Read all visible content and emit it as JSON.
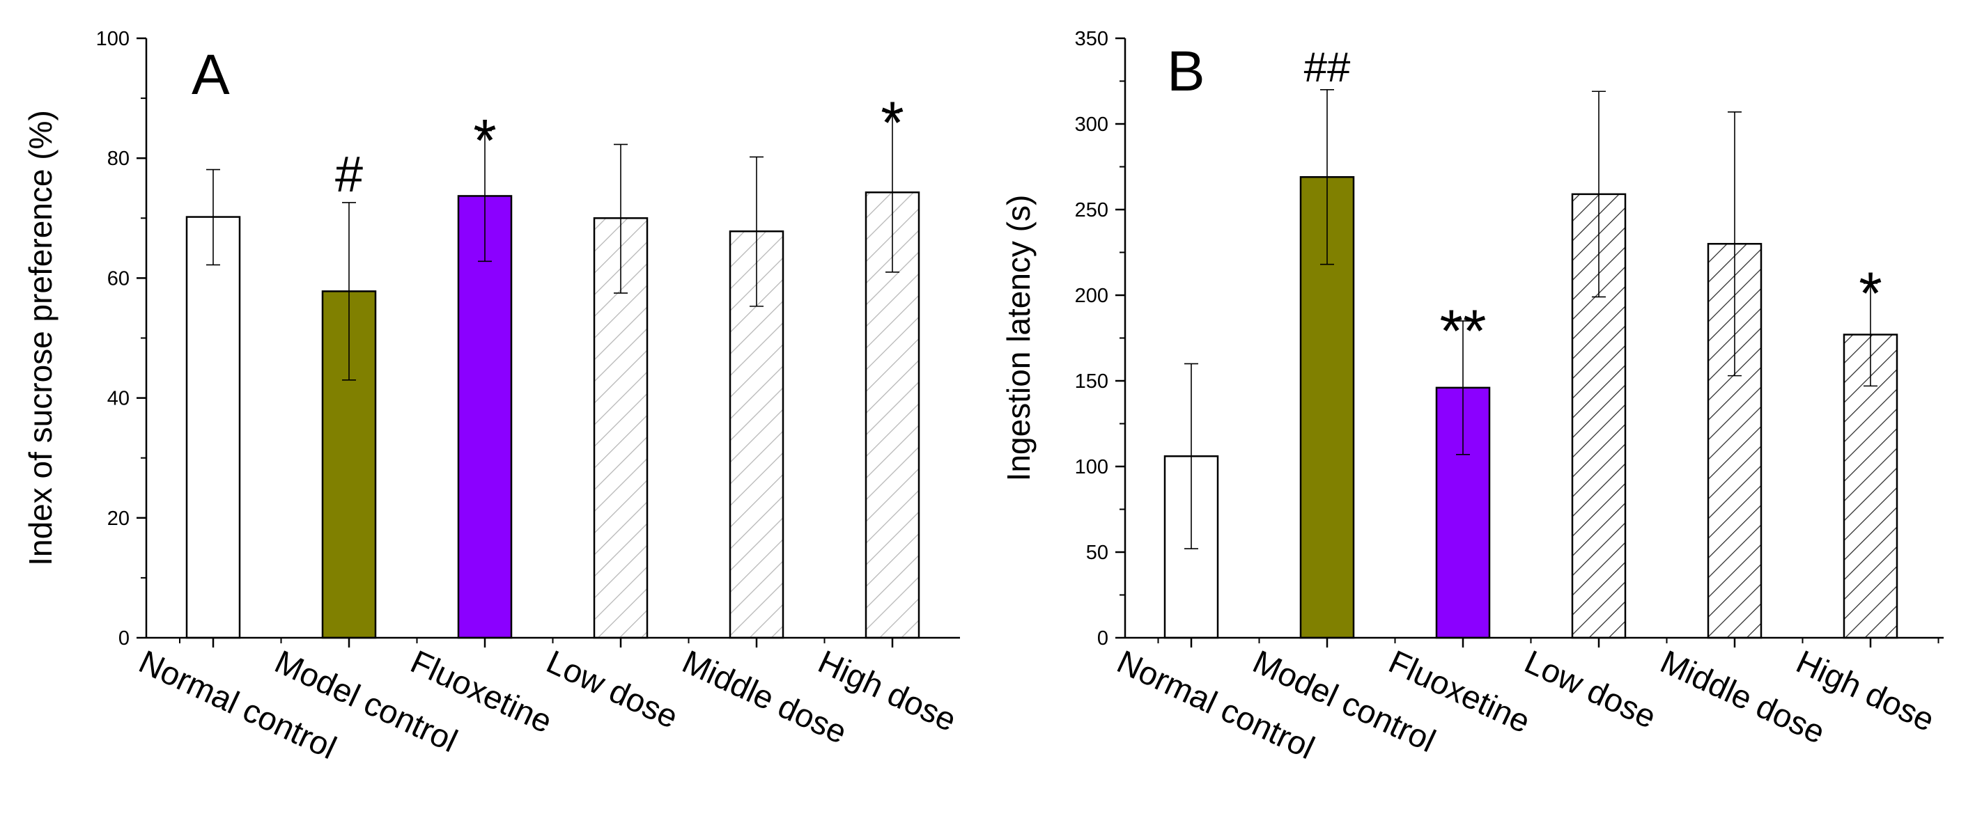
{
  "chart_data": [
    {
      "type": "bar",
      "panel_label": "A",
      "title": "",
      "xlabel": "",
      "ylabel": "Index of sucrose preference (%)",
      "ylim": [
        0,
        100
      ],
      "yticks": [
        0,
        20,
        40,
        60,
        80,
        100
      ],
      "categories": [
        "Normal control",
        "Model control",
        "Fluoxetine",
        "Low dose",
        "Middle dose",
        "High dose"
      ],
      "values": [
        70.2,
        57.8,
        73.7,
        70.0,
        67.8,
        74.3
      ],
      "error_upper": [
        78.1,
        72.6,
        84.6,
        82.3,
        80.2,
        87.6
      ],
      "error_lower": [
        62.2,
        43.0,
        62.8,
        57.5,
        55.3,
        61.0
      ],
      "fills": [
        "white",
        "#808000",
        "#8b00ff",
        "hatch-light",
        "hatch-light",
        "hatch-light"
      ],
      "annotations": [
        "",
        "#",
        "*",
        "",
        "",
        "*"
      ],
      "grid": false,
      "legend": "none"
    },
    {
      "type": "bar",
      "panel_label": "B",
      "title": "",
      "xlabel": "",
      "ylabel": "Ingestion latency (s)",
      "ylim": [
        0,
        350
      ],
      "yticks": [
        0,
        50,
        100,
        150,
        200,
        250,
        300,
        350
      ],
      "categories": [
        "Normal control",
        "Model control",
        "Fluoxetine",
        "Low dose",
        "Middle dose",
        "High dose"
      ],
      "values": [
        106,
        269,
        146,
        259,
        230,
        177
      ],
      "error_upper": [
        160,
        320,
        185,
        319,
        307,
        207
      ],
      "error_lower": [
        52,
        218,
        107,
        199,
        153,
        147
      ],
      "fills": [
        "white",
        "#808000",
        "#8b00ff",
        "hatch-dark",
        "hatch-dark",
        "hatch-dark"
      ],
      "annotations": [
        "",
        "##",
        "**",
        "",
        "",
        "*"
      ],
      "grid": false,
      "legend": "none"
    }
  ]
}
